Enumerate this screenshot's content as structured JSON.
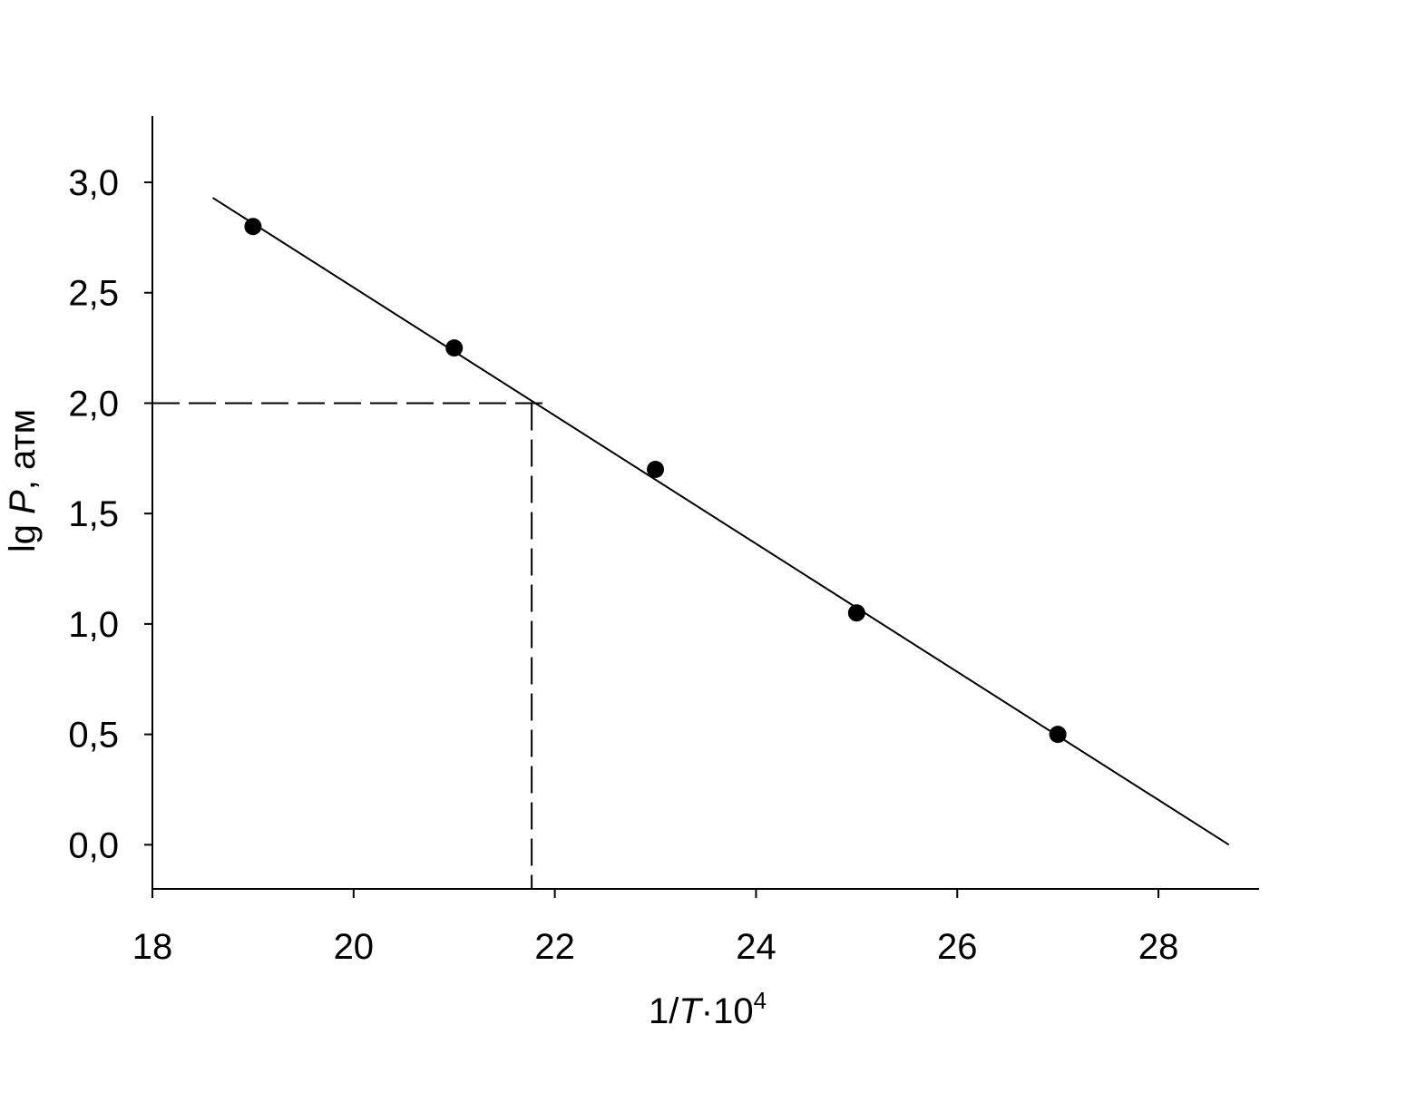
{
  "chart_data": {
    "type": "scatter",
    "xlabel": [
      "1/",
      "T",
      "·10",
      "4"
    ],
    "ylabel": [
      "lg ",
      "P",
      ", атм"
    ],
    "x": [
      19,
      21,
      23,
      25,
      27
    ],
    "series": [
      {
        "color": "#000000",
        "values": [
          2.8,
          2.25,
          1.7,
          1.05,
          0.5
        ]
      }
    ],
    "lines": [
      {
        "x": [
          18.6,
          28.7
        ],
        "y": [
          2.93,
          0
        ],
        "dashed": false
      },
      {
        "x": [
          18,
          21.9
        ],
        "y": [
          2.0,
          2.0
        ],
        "dashed": true
      },
      {
        "x": [
          21.77,
          21.77
        ],
        "y": [
          2.0,
          -0.2
        ],
        "dashed": true
      }
    ],
    "xlim": [
      18,
      29
    ],
    "ylim": [
      -0.2,
      3.3
    ],
    "xticks": [
      18,
      20,
      22,
      24,
      26,
      28
    ],
    "yticks": [
      {
        "value": 0,
        "label": "0,0"
      },
      {
        "value": 0.5,
        "label": "0,5"
      },
      {
        "value": 1,
        "label": "1,0"
      },
      {
        "value": 1.5,
        "label": "1,5"
      },
      {
        "value": 2,
        "label": "2,0"
      },
      {
        "value": 2.5,
        "label": "2,5"
      },
      {
        "value": 3,
        "label": "3,0"
      }
    ],
    "grid": false
  }
}
